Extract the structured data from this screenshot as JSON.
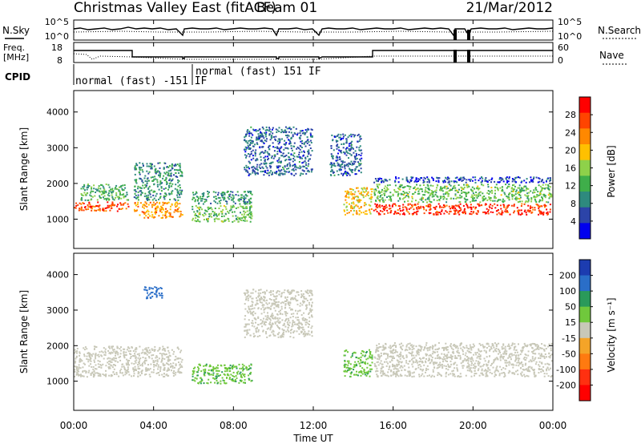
{
  "header": {
    "title": "Christmas Valley East (fitACF)",
    "beam": "Beam 01",
    "date": "21/Mar/2012"
  },
  "time_axis": {
    "label": "Time UT",
    "ticks": [
      "00:00",
      "04:00",
      "08:00",
      "12:00",
      "16:00",
      "20:00",
      "00:00"
    ],
    "tick_hours": [
      0,
      4,
      8,
      12,
      16,
      20,
      24
    ],
    "range_hours": [
      0,
      24
    ]
  },
  "noise_panel": {
    "left_label": "N.Sky",
    "right_label": "N.Search",
    "left_ticks": [
      "10^5",
      "10^0"
    ],
    "right_ticks": [
      "10^5",
      "10^0"
    ]
  },
  "freq_panel": {
    "left_label_1": "Freq.",
    "left_label_2": "[MHz]",
    "right_label": "Nave",
    "left_ticks": [
      "18",
      "8"
    ],
    "right_ticks": [
      "60",
      "0"
    ]
  },
  "cpid_panel": {
    "label": "CPID",
    "segments": [
      {
        "text": "normal (fast) -151 IF",
        "start_hour": 0.0,
        "end_hour": 5.9
      },
      {
        "text": "normal (fast) 151 IF",
        "start_hour": 5.9,
        "end_hour": 24.0
      }
    ]
  },
  "range_axis": {
    "label": "Slant Range [km]",
    "ticks": [
      "1000",
      "2000",
      "3000",
      "4000"
    ],
    "tick_values": [
      1000,
      2000,
      3000,
      4000
    ],
    "range_km": [
      180,
      4600
    ]
  },
  "power_colorbar": {
    "label": "Power [dB]",
    "ticks": [
      "4",
      "8",
      "12",
      "16",
      "20",
      "24",
      "28"
    ],
    "colors": [
      "#0000ee",
      "#2c44a8",
      "#2e8a7e",
      "#3fae4a",
      "#8ed14a",
      "#ffc000",
      "#ff8800",
      "#ff4400",
      "#ff0000"
    ]
  },
  "velocity_colorbar": {
    "label": "Velocity [m s⁻¹]",
    "ticks": [
      "200",
      "100",
      "50",
      "15",
      "-15",
      "-50",
      "-100",
      "-200"
    ],
    "colors": [
      "#1c3cb0",
      "#2a6ec8",
      "#2a9a5a",
      "#70c83c",
      "#c8c8b8",
      "#f4a428",
      "#ff7a10",
      "#ff3010",
      "#ff0000"
    ]
  },
  "chart_data": [
    {
      "type": "heatmap",
      "name": "Power",
      "xlabel": "Time UT",
      "ylabel": "Slant Range [km]",
      "xlim": [
        0,
        24
      ],
      "ylim": [
        180,
        4600
      ],
      "colorbar_label": "Power [dB]",
      "colorbar_ticks": [
        4,
        8,
        12,
        16,
        20,
        24,
        28
      ],
      "regions": [
        {
          "t0": 0.0,
          "t1": 2.8,
          "r0": 1200,
          "r1": 1500,
          "value": 26
        },
        {
          "t0": 0.3,
          "t1": 2.8,
          "r0": 1500,
          "r1": 2000,
          "value": 12
        },
        {
          "t0": 3.0,
          "t1": 5.5,
          "r0": 1000,
          "r1": 1500,
          "value": 22
        },
        {
          "t0": 3.0,
          "t1": 5.5,
          "r0": 1500,
          "r1": 2600,
          "value": 10
        },
        {
          "t0": 5.9,
          "t1": 9.0,
          "r0": 900,
          "r1": 1400,
          "value": 14
        },
        {
          "t0": 5.9,
          "t1": 9.0,
          "r0": 1400,
          "r1": 1800,
          "value": 10
        },
        {
          "t0": 8.5,
          "t1": 12.0,
          "r0": 2200,
          "r1": 3600,
          "value": 7
        },
        {
          "t0": 12.8,
          "t1": 14.5,
          "r0": 2200,
          "r1": 3400,
          "value": 7
        },
        {
          "t0": 13.5,
          "t1": 15.0,
          "r0": 1100,
          "r1": 1900,
          "value": 20
        },
        {
          "t0": 15.0,
          "t1": 24.0,
          "r0": 1100,
          "r1": 1450,
          "value": 28
        },
        {
          "t0": 15.0,
          "t1": 24.0,
          "r0": 1450,
          "r1": 2000,
          "value": 14
        },
        {
          "t0": 15.0,
          "t1": 24.0,
          "r0": 2000,
          "r1": 2200,
          "value": 5
        }
      ]
    },
    {
      "type": "heatmap",
      "name": "Velocity",
      "xlabel": "Time UT",
      "ylabel": "Slant Range [km]",
      "xlim": [
        0,
        24
      ],
      "ylim": [
        180,
        4600
      ],
      "colorbar_label": "Velocity [m s⁻¹]",
      "colorbar_ticks": [
        200,
        100,
        50,
        15,
        -15,
        -50,
        -100,
        -200
      ],
      "regions": [
        {
          "t0": 0.0,
          "t1": 5.5,
          "r0": 1100,
          "r1": 2000,
          "value": 0
        },
        {
          "t0": 5.9,
          "t1": 9.0,
          "r0": 900,
          "r1": 1500,
          "value": 40
        },
        {
          "t0": 8.5,
          "t1": 12.0,
          "r0": 2200,
          "r1": 3600,
          "value": 0
        },
        {
          "t0": 13.5,
          "t1": 15.0,
          "r0": 1100,
          "r1": 1900,
          "value": 40
        },
        {
          "t0": 15.0,
          "t1": 24.0,
          "r0": 1100,
          "r1": 2100,
          "value": 0
        },
        {
          "t0": 3.5,
          "t1": 4.5,
          "r0": 3300,
          "r1": 3700,
          "value": 150
        }
      ]
    }
  ]
}
